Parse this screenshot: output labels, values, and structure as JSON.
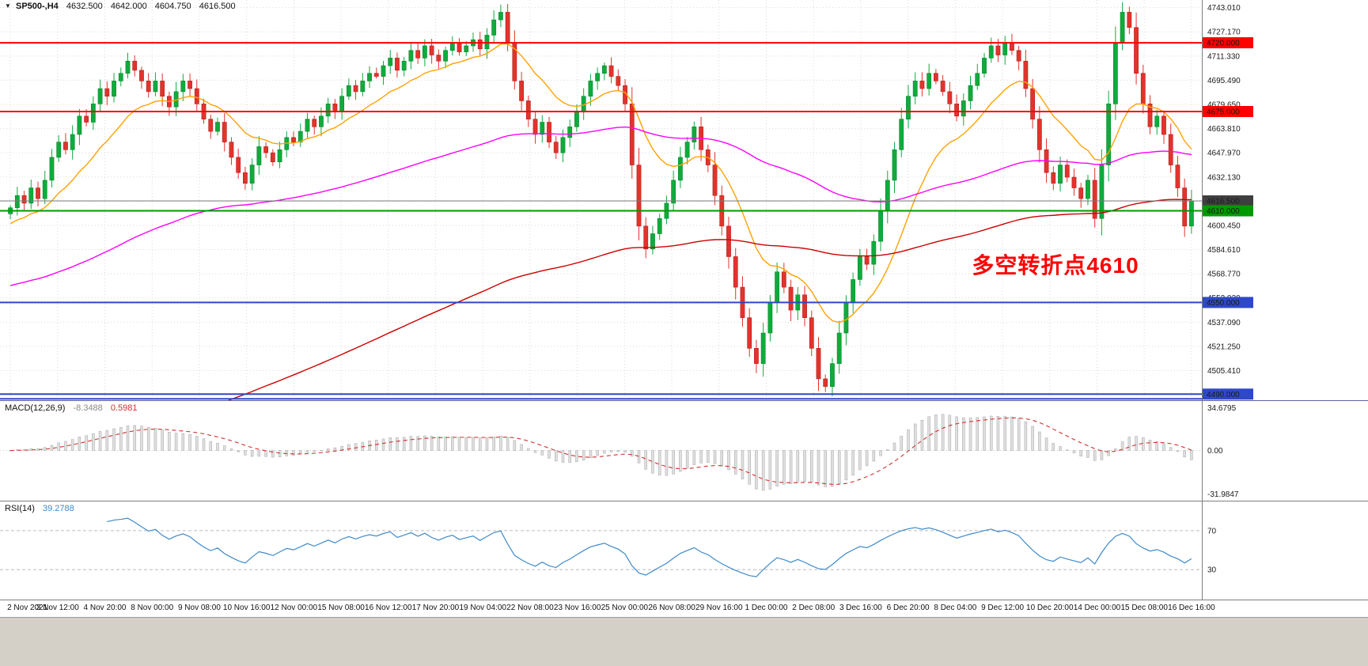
{
  "header": {
    "symbol_period": "SP500-,H4",
    "open": "4632.500",
    "high": "4642.000",
    "low": "4604.750",
    "close": "4616.500"
  },
  "annotation": {
    "text": "多空转折点4610",
    "color": "#ff0000"
  },
  "price_axis": {
    "ticks": [
      "4743.010",
      "4727.170",
      "4711.330",
      "4695.490",
      "4679.650",
      "4663.810",
      "4647.970",
      "4632.130",
      "4616.290",
      "4600.450",
      "4584.610",
      "4568.770",
      "4552.930",
      "4537.090",
      "4521.250",
      "4505.410",
      "4489.570"
    ]
  },
  "levels": [
    {
      "price": 4720.0,
      "label": "4720.000",
      "color": "#ff0000",
      "width": 2
    },
    {
      "price": 4675.0,
      "label": "4675.000",
      "color": "#ff0000",
      "width": 2
    },
    {
      "price": 4616.5,
      "label": "4616.500",
      "color": "#7a7a7a",
      "badge": "#3f3f3f",
      "width": 1
    },
    {
      "price": 4610.0,
      "label": "4610.000",
      "color": "#009a00",
      "width": 2
    },
    {
      "price": 4550.0,
      "label": "4550.000",
      "color": "#2f48c8",
      "width": 2
    },
    {
      "price": 4490.0,
      "label": "4490.000",
      "color": "#2f48c8",
      "width": 2
    },
    {
      "price": 4486.9,
      "label": "",
      "color": "#2f48c8",
      "width": 2
    }
  ],
  "macd_panel": {
    "name": "MACD(12,26,9)",
    "value_main": "-8.3488",
    "value_signal": "0.5981",
    "scale_top": "34.6795",
    "scale_zero": "0.00",
    "scale_bottom": "-31.9847",
    "histogram_color": "#dfdfdf",
    "histogram_stroke": "#a6a6a6",
    "signal_color": "#d03030"
  },
  "rsi_panel": {
    "name": "RSI(14)",
    "value": "39.2788",
    "levels": [
      70,
      30
    ],
    "level_labels": [
      "70",
      "30"
    ],
    "line_color": "#3f8ac9",
    "level_line_color": "#bcbcbc"
  },
  "chart_data": {
    "type": "candlestick",
    "symbol": "SP500-",
    "timeframe": "H4",
    "current_bar": {
      "open": 4632.5,
      "high": 4642.0,
      "low": 4604.75,
      "close": 4616.5
    },
    "price_range": [
      4486,
      4748
    ],
    "colors": {
      "up": "#0fab3c",
      "up_stroke": "#0a8a2f",
      "down": "#e2332c",
      "down_stroke": "#b5221d",
      "grid": "#dadada"
    },
    "closes": [
      4612,
      4620,
      4615,
      4625,
      4618,
      4630,
      4645,
      4655,
      4650,
      4660,
      4672,
      4668,
      4680,
      4690,
      4685,
      4695,
      4700,
      4708,
      4702,
      4695,
      4688,
      4695,
      4685,
      4678,
      4688,
      4695,
      4690,
      4680,
      4670,
      4662,
      4668,
      4655,
      4645,
      4635,
      4628,
      4640,
      4652,
      4648,
      4642,
      4650,
      4658,
      4655,
      4662,
      4670,
      4665,
      4672,
      4680,
      4675,
      4685,
      4692,
      4688,
      4695,
      4700,
      4698,
      4705,
      4710,
      4702,
      4708,
      4715,
      4710,
      4718,
      4712,
      4708,
      4715,
      4720,
      4714,
      4718,
      4722,
      4716,
      4725,
      4735,
      4740,
      4720,
      4695,
      4682,
      4670,
      4660,
      4668,
      4655,
      4648,
      4658,
      4665,
      4675,
      4685,
      4695,
      4700,
      4705,
      4698,
      4692,
      4680,
      4640,
      4600,
      4585,
      4595,
      4605,
      4615,
      4630,
      4645,
      4655,
      4665,
      4650,
      4640,
      4620,
      4600,
      4580,
      4560,
      4540,
      4520,
      4510,
      4530,
      4550,
      4570,
      4560,
      4545,
      4555,
      4540,
      4520,
      4500,
      4495,
      4510,
      4530,
      4550,
      4565,
      4580,
      4575,
      4590,
      4610,
      4630,
      4650,
      4670,
      4685,
      4695,
      4690,
      4700,
      4695,
      4688,
      4680,
      4672,
      4682,
      4692,
      4700,
      4710,
      4718,
      4712,
      4720,
      4715,
      4708,
      4690,
      4670,
      4650,
      4635,
      4628,
      4640,
      4632,
      4625,
      4618,
      4630,
      4605,
      4640,
      4680,
      4720,
      4740,
      4730,
      4700,
      4680,
      4665,
      4672,
      4660,
      4640,
      4625,
      4600,
      4616.5
    ],
    "moving_averages": [
      {
        "name": "fast",
        "period": 14,
        "init": 4600,
        "color": "#ffa200"
      },
      {
        "name": "medium",
        "period": 100,
        "init": 4560,
        "color": "#ff00ff"
      },
      {
        "name": "slow",
        "period": 170,
        "init": 4400,
        "color": "#cc0000"
      }
    ],
    "horizontal_lines": [
      4720,
      4675,
      4616.5,
      4610,
      4550,
      4490
    ],
    "indicators": [
      {
        "type": "macd",
        "fast": 12,
        "slow": 26,
        "signal": 9
      },
      {
        "type": "rsi",
        "period": 14
      }
    ],
    "x_labels": [
      "2 Nov 2021",
      "3 Nov 12:00",
      "4 Nov 20:00",
      "8 Nov 00:00",
      "9 Nov 08:00",
      "10 Nov 16:00",
      "12 Nov 00:00",
      "15 Nov 08:00",
      "16 Nov 12:00",
      "17 Nov 20:00",
      "19 Nov 04:00",
      "22 Nov 08:00",
      "23 Nov 16:00",
      "25 Nov 00:00",
      "26 Nov 08:00",
      "29 Nov 16:00",
      "1 Dec 00:00",
      "2 Dec 08:00",
      "3 Dec 16:00",
      "6 Dec 20:00",
      "8 Dec 04:00",
      "9 Dec 12:00",
      "10 Dec 20:00",
      "14 Dec 00:00",
      "15 Dec 08:00",
      "16 Dec 16:00"
    ]
  }
}
